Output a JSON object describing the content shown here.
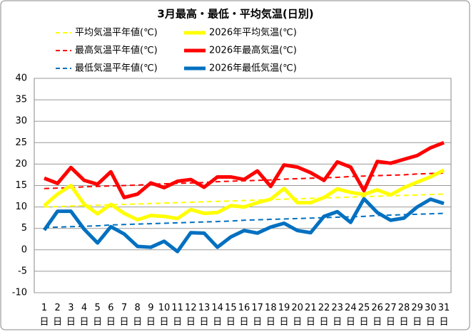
{
  "chart_data": {
    "type": "line",
    "title": "3月最高・最低・平均気温(日別)",
    "categories": [
      "1日",
      "2日",
      "3日",
      "4日",
      "5日",
      "6日",
      "7日",
      "8日",
      "9日",
      "10日",
      "11日",
      "12日",
      "13日",
      "14日",
      "15日",
      "16日",
      "17日",
      "18日",
      "19日",
      "20日",
      "21日",
      "22日",
      "23日",
      "24日",
      "25日",
      "26日",
      "27日",
      "28日",
      "29日",
      "30日",
      "31日"
    ],
    "ylim": [
      -10,
      40
    ],
    "yticks": [
      -10,
      -5,
      0,
      5,
      10,
      15,
      20,
      25,
      30,
      35,
      40
    ],
    "grid": true,
    "series": [
      {
        "name": "平均気温平年値(℃)",
        "color": "#ffff00",
        "dashed": true,
        "values": [
          10.0,
          10.1,
          10.2,
          10.3,
          10.4,
          10.5,
          10.6,
          10.7,
          10.8,
          10.9,
          11.0,
          11.1,
          11.2,
          11.3,
          11.4,
          11.5,
          11.6,
          11.7,
          11.8,
          11.9,
          12.0,
          12.1,
          12.2,
          12.3,
          12.4,
          12.5,
          12.6,
          12.7,
          12.8,
          12.9,
          13.0
        ]
      },
      {
        "name": "2026年平均気温(℃)",
        "color": "#ffff00",
        "dashed": false,
        "values": [
          10.3,
          13.0,
          15.0,
          10.6,
          8.4,
          10.6,
          8.5,
          7.0,
          8.0,
          7.8,
          7.3,
          9.4,
          8.5,
          8.7,
          10.3,
          10.0,
          11.0,
          11.8,
          14.3,
          11.0,
          11.0,
          12.2,
          14.2,
          13.4,
          12.9,
          14.0,
          12.8,
          14.5,
          15.8,
          17.0,
          18.6
        ]
      },
      {
        "name": "最高気温平年値(℃)",
        "color": "#ff0000",
        "dashed": true,
        "values": [
          14.3,
          14.4,
          14.5,
          14.7,
          14.8,
          14.9,
          15.0,
          15.1,
          15.3,
          15.4,
          15.5,
          15.6,
          15.7,
          15.9,
          16.0,
          16.1,
          16.2,
          16.3,
          16.5,
          16.6,
          16.7,
          16.8,
          16.9,
          17.1,
          17.2,
          17.3,
          17.4,
          17.5,
          17.7,
          17.8,
          17.9
        ]
      },
      {
        "name": "2026年最高気温(℃)",
        "color": "#ff0000",
        "dashed": false,
        "values": [
          16.7,
          15.5,
          19.2,
          16.2,
          15.3,
          18.2,
          12.2,
          13.0,
          15.6,
          14.5,
          16.0,
          16.4,
          14.6,
          17.0,
          17.0,
          16.4,
          18.4,
          14.8,
          19.8,
          19.3,
          18.0,
          16.2,
          20.5,
          19.3,
          13.8,
          20.6,
          20.2,
          21.1,
          22.0,
          23.8,
          25.0
        ]
      },
      {
        "name": "最低気温平年値(℃)",
        "color": "#0070c0",
        "dashed": true,
        "values": [
          5.2,
          5.3,
          5.4,
          5.5,
          5.6,
          5.8,
          5.9,
          6.0,
          6.1,
          6.2,
          6.3,
          6.4,
          6.5,
          6.6,
          6.7,
          6.9,
          7.0,
          7.1,
          7.2,
          7.3,
          7.4,
          7.5,
          7.6,
          7.7,
          7.8,
          8.0,
          8.1,
          8.2,
          8.3,
          8.4,
          8.5
        ]
      },
      {
        "name": "2026年最低気温(℃)",
        "color": "#0070c0",
        "dashed": false,
        "values": [
          4.6,
          9.0,
          9.0,
          4.8,
          1.6,
          5.4,
          3.7,
          0.8,
          0.6,
          2.0,
          -0.4,
          4.0,
          3.9,
          0.6,
          3.0,
          4.5,
          3.9,
          5.3,
          6.2,
          4.5,
          4.0,
          7.8,
          8.9,
          6.4,
          11.9,
          8.7,
          6.9,
          7.4,
          10.0,
          11.8,
          10.8
        ]
      }
    ]
  }
}
